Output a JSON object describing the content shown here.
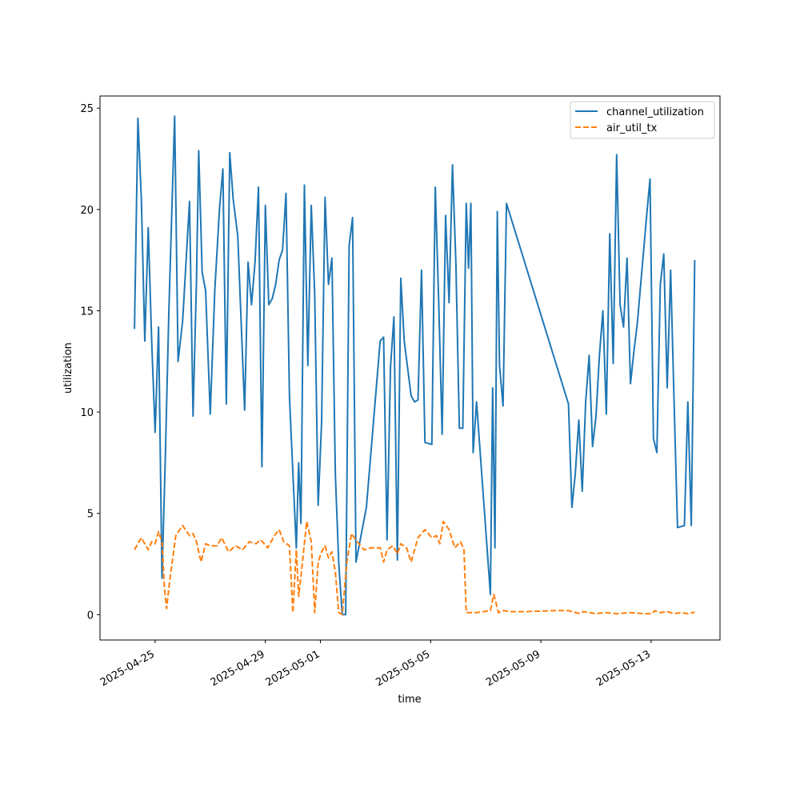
{
  "chart_data": {
    "type": "line",
    "title": "",
    "xlabel": "time",
    "ylabel": "utilization",
    "x_axis_type": "date",
    "xlim": [
      "2025-04-23T00:00",
      "2025-05-15T12:00"
    ],
    "ylim": [
      -1.25,
      25.6
    ],
    "xticks": [
      "2025-04-25",
      "2025-04-29",
      "2025-05-01",
      "2025-05-05",
      "2025-05-09",
      "2025-05-13"
    ],
    "yticks": [
      0,
      5,
      10,
      15,
      20,
      25
    ],
    "grid": false,
    "legend_position": "top-right",
    "series": [
      {
        "name": "channel_utilization",
        "color": "#1f77b4",
        "dash": "solid",
        "points": [
          [
            "2025-04-24T06:00",
            14.1
          ],
          [
            "2025-04-24T09:00",
            24.5
          ],
          [
            "2025-04-24T12:00",
            20.5
          ],
          [
            "2025-04-24T15:00",
            13.5
          ],
          [
            "2025-04-24T18:00",
            19.1
          ],
          [
            "2025-04-24T21:00",
            13.5
          ],
          [
            "2025-04-25T00:00",
            9.0
          ],
          [
            "2025-04-25T03:00",
            14.2
          ],
          [
            "2025-04-25T06:00",
            1.8
          ],
          [
            "2025-04-25T09:00",
            8.0
          ],
          [
            "2025-04-25T12:00",
            15.0
          ],
          [
            "2025-04-25T17:00",
            24.6
          ],
          [
            "2025-04-25T20:00",
            12.5
          ],
          [
            "2025-04-26T00:00",
            14.5
          ],
          [
            "2025-04-26T06:00",
            20.4
          ],
          [
            "2025-04-26T09:00",
            9.8
          ],
          [
            "2025-04-26T12:00",
            16.5
          ],
          [
            "2025-04-26T14:00",
            22.9
          ],
          [
            "2025-04-26T17:00",
            16.9
          ],
          [
            "2025-04-26T20:00",
            16.0
          ],
          [
            "2025-04-27T00:00",
            9.9
          ],
          [
            "2025-04-27T04:00",
            16.0
          ],
          [
            "2025-04-27T08:00",
            20.0
          ],
          [
            "2025-04-27T11:00",
            22.0
          ],
          [
            "2025-04-27T14:00",
            10.4
          ],
          [
            "2025-04-27T17:00",
            22.8
          ],
          [
            "2025-04-27T20:00",
            20.5
          ],
          [
            "2025-04-28T00:00",
            18.7
          ],
          [
            "2025-04-28T06:00",
            10.1
          ],
          [
            "2025-04-28T09:00",
            17.4
          ],
          [
            "2025-04-28T12:00",
            15.3
          ],
          [
            "2025-04-28T15:00",
            17.4
          ],
          [
            "2025-04-28T18:00",
            21.1
          ],
          [
            "2025-04-28T21:00",
            7.3
          ],
          [
            "2025-04-29T00:00",
            20.2
          ],
          [
            "2025-04-29T03:00",
            15.3
          ],
          [
            "2025-04-29T06:00",
            15.6
          ],
          [
            "2025-04-29T09:00",
            16.3
          ],
          [
            "2025-04-29T12:00",
            17.5
          ],
          [
            "2025-04-29T15:00",
            18.0
          ],
          [
            "2025-04-29T18:00",
            20.8
          ],
          [
            "2025-04-29T21:00",
            10.8
          ],
          [
            "2025-04-30T00:00",
            7.0
          ],
          [
            "2025-04-30T03:00",
            3.3
          ],
          [
            "2025-04-30T05:00",
            7.5
          ],
          [
            "2025-04-30T07:00",
            4.5
          ],
          [
            "2025-04-30T10:00",
            21.2
          ],
          [
            "2025-04-30T13:00",
            12.3
          ],
          [
            "2025-04-30T16:00",
            20.2
          ],
          [
            "2025-04-30T19:00",
            15.8
          ],
          [
            "2025-04-30T22:00",
            5.4
          ],
          [
            "2025-05-01T01:00",
            9.5
          ],
          [
            "2025-05-01T04:00",
            20.6
          ],
          [
            "2025-05-01T07:00",
            16.3
          ],
          [
            "2025-05-01T10:00",
            17.6
          ],
          [
            "2025-05-01T13:00",
            6.9
          ],
          [
            "2025-05-01T16:00",
            2.5
          ],
          [
            "2025-05-01T19:00",
            0.0
          ],
          [
            "2025-05-01T22:00",
            0.0
          ],
          [
            "2025-05-02T01:00",
            18.2
          ],
          [
            "2025-05-02T04:00",
            19.6
          ],
          [
            "2025-05-02T07:00",
            2.6
          ],
          [
            "2025-05-02T16:00",
            5.3
          ],
          [
            "2025-05-03T04:00",
            13.5
          ],
          [
            "2025-05-03T07:00",
            13.7
          ],
          [
            "2025-05-03T10:00",
            3.7
          ],
          [
            "2025-05-03T13:00",
            12.2
          ],
          [
            "2025-05-03T16:00",
            14.7
          ],
          [
            "2025-05-03T19:00",
            2.7
          ],
          [
            "2025-05-03T22:00",
            16.6
          ],
          [
            "2025-05-04T01:00",
            13.5
          ],
          [
            "2025-05-04T07:00",
            10.8
          ],
          [
            "2025-05-04T10:00",
            10.5
          ],
          [
            "2025-05-04T13:00",
            10.6
          ],
          [
            "2025-05-04T16:00",
            17.0
          ],
          [
            "2025-05-04T19:00",
            8.5
          ],
          [
            "2025-05-05T01:00",
            8.4
          ],
          [
            "2025-05-05T04:00",
            21.1
          ],
          [
            "2025-05-05T07:00",
            15.4
          ],
          [
            "2025-05-05T10:00",
            8.9
          ],
          [
            "2025-05-05T13:00",
            19.7
          ],
          [
            "2025-05-05T16:00",
            15.4
          ],
          [
            "2025-05-05T19:00",
            22.2
          ],
          [
            "2025-05-05T22:00",
            17.3
          ],
          [
            "2025-05-06T01:00",
            9.2
          ],
          [
            "2025-05-06T04:00",
            9.2
          ],
          [
            "2025-05-06T07:00",
            20.3
          ],
          [
            "2025-05-06T09:00",
            17.1
          ],
          [
            "2025-05-06T11:00",
            20.3
          ],
          [
            "2025-05-06T13:00",
            8.0
          ],
          [
            "2025-05-06T16:00",
            10.5
          ],
          [
            "2025-05-07T04:00",
            1.0
          ],
          [
            "2025-05-07T06:00",
            11.2
          ],
          [
            "2025-05-07T08:00",
            3.3
          ],
          [
            "2025-05-07T10:00",
            19.9
          ],
          [
            "2025-05-07T12:00",
            12.3
          ],
          [
            "2025-05-07T15:00",
            10.3
          ],
          [
            "2025-05-07T18:00",
            20.3
          ],
          [
            "2025-05-10T00:00",
            10.4
          ],
          [
            "2025-05-10T03:00",
            5.3
          ],
          [
            "2025-05-10T06:00",
            7.0
          ],
          [
            "2025-05-10T09:00",
            9.6
          ],
          [
            "2025-05-10T12:00",
            6.1
          ],
          [
            "2025-05-10T15:00",
            10.5
          ],
          [
            "2025-05-10T18:00",
            12.8
          ],
          [
            "2025-05-10T21:00",
            8.3
          ],
          [
            "2025-05-11T00:00",
            9.8
          ],
          [
            "2025-05-11T03:00",
            12.8
          ],
          [
            "2025-05-11T06:00",
            15.0
          ],
          [
            "2025-05-11T09:00",
            9.9
          ],
          [
            "2025-05-11T12:00",
            18.8
          ],
          [
            "2025-05-11T15:00",
            12.4
          ],
          [
            "2025-05-11T18:00",
            22.7
          ],
          [
            "2025-05-11T21:00",
            15.3
          ],
          [
            "2025-05-12T00:00",
            14.2
          ],
          [
            "2025-05-12T03:00",
            17.6
          ],
          [
            "2025-05-12T06:00",
            11.4
          ],
          [
            "2025-05-12T09:00",
            13.0
          ],
          [
            "2025-05-12T12:00",
            14.4
          ],
          [
            "2025-05-12T20:00",
            19.6
          ],
          [
            "2025-05-12T23:00",
            21.5
          ],
          [
            "2025-05-13T02:00",
            8.7
          ],
          [
            "2025-05-13T05:00",
            8.0
          ],
          [
            "2025-05-13T08:00",
            16.3
          ],
          [
            "2025-05-13T11:00",
            17.8
          ],
          [
            "2025-05-13T14:00",
            11.2
          ],
          [
            "2025-05-13T17:00",
            17.0
          ],
          [
            "2025-05-13T20:00",
            10.5
          ],
          [
            "2025-05-13T23:00",
            4.3
          ],
          [
            "2025-05-14T05:00",
            4.4
          ],
          [
            "2025-05-14T08:00",
            10.5
          ],
          [
            "2025-05-14T11:00",
            4.4
          ],
          [
            "2025-05-14T14:00",
            17.5
          ]
        ]
      },
      {
        "name": "air_util_tx",
        "color": "#ff7f0e",
        "dash": "dashed",
        "points": [
          [
            "2025-04-24T06:00",
            3.2
          ],
          [
            "2025-04-24T12:00",
            3.8
          ],
          [
            "2025-04-24T18:00",
            3.2
          ],
          [
            "2025-04-24T21:00",
            3.6
          ],
          [
            "2025-04-25T00:00",
            3.5
          ],
          [
            "2025-04-25T03:00",
            4.1
          ],
          [
            "2025-04-25T06:00",
            3.6
          ],
          [
            "2025-04-25T08:00",
            1.4
          ],
          [
            "2025-04-25T10:00",
            0.3
          ],
          [
            "2025-04-25T13:00",
            1.8
          ],
          [
            "2025-04-25T18:00",
            3.9
          ],
          [
            "2025-04-26T00:00",
            4.4
          ],
          [
            "2025-04-26T06:00",
            3.9
          ],
          [
            "2025-04-26T09:00",
            4.0
          ],
          [
            "2025-04-26T12:00",
            3.6
          ],
          [
            "2025-04-26T16:00",
            2.6
          ],
          [
            "2025-04-26T20:00",
            3.5
          ],
          [
            "2025-04-27T00:00",
            3.4
          ],
          [
            "2025-04-27T06:00",
            3.4
          ],
          [
            "2025-04-27T10:00",
            3.8
          ],
          [
            "2025-04-27T16:00",
            3.1
          ],
          [
            "2025-04-27T22:00",
            3.4
          ],
          [
            "2025-04-28T04:00",
            3.2
          ],
          [
            "2025-04-28T10:00",
            3.6
          ],
          [
            "2025-04-28T16:00",
            3.5
          ],
          [
            "2025-04-28T20:00",
            3.7
          ],
          [
            "2025-04-29T02:00",
            3.3
          ],
          [
            "2025-04-29T08:00",
            3.9
          ],
          [
            "2025-04-29T12:00",
            4.2
          ],
          [
            "2025-04-29T16:00",
            3.6
          ],
          [
            "2025-04-29T21:00",
            3.4
          ],
          [
            "2025-04-30T00:00",
            0.1
          ],
          [
            "2025-04-30T03:00",
            3.2
          ],
          [
            "2025-04-30T05:00",
            0.9
          ],
          [
            "2025-04-30T08:00",
            2.4
          ],
          [
            "2025-04-30T12:00",
            4.6
          ],
          [
            "2025-04-30T16:00",
            3.6
          ],
          [
            "2025-04-30T19:00",
            0.1
          ],
          [
            "2025-04-30T22:00",
            2.6
          ],
          [
            "2025-05-01T01:00",
            3.1
          ],
          [
            "2025-05-01T04:00",
            3.4
          ],
          [
            "2025-05-01T07:00",
            2.8
          ],
          [
            "2025-05-01T10:00",
            3.1
          ],
          [
            "2025-05-01T13:00",
            2.1
          ],
          [
            "2025-05-01T16:00",
            0.1
          ],
          [
            "2025-05-01T19:00",
            0.0
          ],
          [
            "2025-05-01T23:00",
            2.6
          ],
          [
            "2025-05-02T03:00",
            4.0
          ],
          [
            "2025-05-02T08:00",
            3.6
          ],
          [
            "2025-05-02T14:00",
            3.2
          ],
          [
            "2025-05-02T20:00",
            3.3
          ],
          [
            "2025-05-03T04:00",
            3.3
          ],
          [
            "2025-05-03T07:00",
            2.6
          ],
          [
            "2025-05-03T10:00",
            3.2
          ],
          [
            "2025-05-03T15:00",
            3.4
          ],
          [
            "2025-05-03T19:00",
            3.0
          ],
          [
            "2025-05-03T22:00",
            3.5
          ],
          [
            "2025-05-04T03:00",
            3.3
          ],
          [
            "2025-05-04T07:00",
            2.6
          ],
          [
            "2025-05-04T13:00",
            3.8
          ],
          [
            "2025-05-04T19:00",
            4.2
          ],
          [
            "2025-05-05T01:00",
            3.8
          ],
          [
            "2025-05-05T05:00",
            3.9
          ],
          [
            "2025-05-05T08:00",
            3.5
          ],
          [
            "2025-05-05T11:00",
            4.6
          ],
          [
            "2025-05-05T16:00",
            4.2
          ],
          [
            "2025-05-05T21:00",
            3.3
          ],
          [
            "2025-05-06T02:00",
            3.6
          ],
          [
            "2025-05-06T05:00",
            3.2
          ],
          [
            "2025-05-06T07:00",
            0.1
          ],
          [
            "2025-05-06T16:00",
            0.1
          ],
          [
            "2025-05-07T04:00",
            0.2
          ],
          [
            "2025-05-07T07:00",
            1.0
          ],
          [
            "2025-05-07T11:00",
            0.1
          ],
          [
            "2025-05-07T15:00",
            0.2
          ],
          [
            "2025-05-07T22:00",
            0.15
          ],
          [
            "2025-05-08T12:00",
            0.15
          ],
          [
            "2025-05-09T12:00",
            0.2
          ],
          [
            "2025-05-10T00:00",
            0.2
          ],
          [
            "2025-05-10T10:00",
            0.05
          ],
          [
            "2025-05-10T13:00",
            0.15
          ],
          [
            "2025-05-11T00:00",
            0.05
          ],
          [
            "2025-05-11T08:00",
            0.1
          ],
          [
            "2025-05-11T18:00",
            0.05
          ],
          [
            "2025-05-12T06:00",
            0.1
          ],
          [
            "2025-05-12T18:00",
            0.05
          ],
          [
            "2025-05-13T01:00",
            0.05
          ],
          [
            "2025-05-13T03:00",
            0.2
          ],
          [
            "2025-05-13T08:00",
            0.1
          ],
          [
            "2025-05-13T14:00",
            0.15
          ],
          [
            "2025-05-13T20:00",
            0.05
          ],
          [
            "2025-05-14T02:00",
            0.1
          ],
          [
            "2025-05-14T08:00",
            0.05
          ],
          [
            "2025-05-14T14:00",
            0.12
          ]
        ]
      }
    ]
  }
}
